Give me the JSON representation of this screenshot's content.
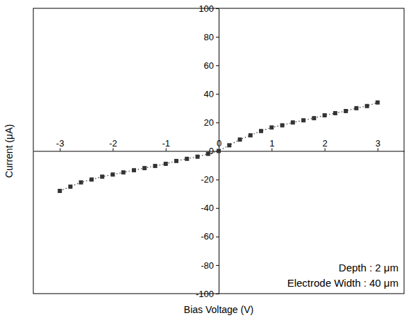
{
  "chart_data": {
    "type": "line",
    "x_label": "Bias Voltage (V)",
    "y_label": "Current (μA)",
    "annotations": [
      "Depth : 2 μm",
      "Electrode Width : 40 μm"
    ],
    "x": [
      -3.0,
      -2.8,
      -2.6,
      -2.4,
      -2.2,
      -2.0,
      -1.8,
      -1.6,
      -1.4,
      -1.2,
      -1.0,
      -0.8,
      -0.6,
      -0.4,
      -0.2,
      0.0,
      0.2,
      0.4,
      0.6,
      0.8,
      1.0,
      1.2,
      1.4,
      1.6,
      1.8,
      2.0,
      2.2,
      2.4,
      2.6,
      2.8,
      3.0
    ],
    "values": [
      -28,
      -25,
      -22,
      -20,
      -18,
      -16.5,
      -15,
      -13.5,
      -12,
      -10.5,
      -9,
      -7,
      -5.5,
      -4,
      -2,
      0,
      4,
      8,
      11,
      14,
      16.5,
      18,
      20,
      21.5,
      23,
      25,
      26.5,
      28,
      30,
      31.5,
      34
    ],
    "color": "#333333",
    "marker": "square",
    "line_style": "dotted",
    "xlim": [
      -3.5,
      3.5
    ],
    "ylim": [
      -100,
      100
    ],
    "xticks": [
      -3,
      -2,
      -1,
      0,
      1,
      2,
      3
    ],
    "yticks": [
      -100,
      -80,
      -60,
      -40,
      -20,
      0,
      20,
      40,
      60,
      80,
      100
    ],
    "grid": false
  }
}
